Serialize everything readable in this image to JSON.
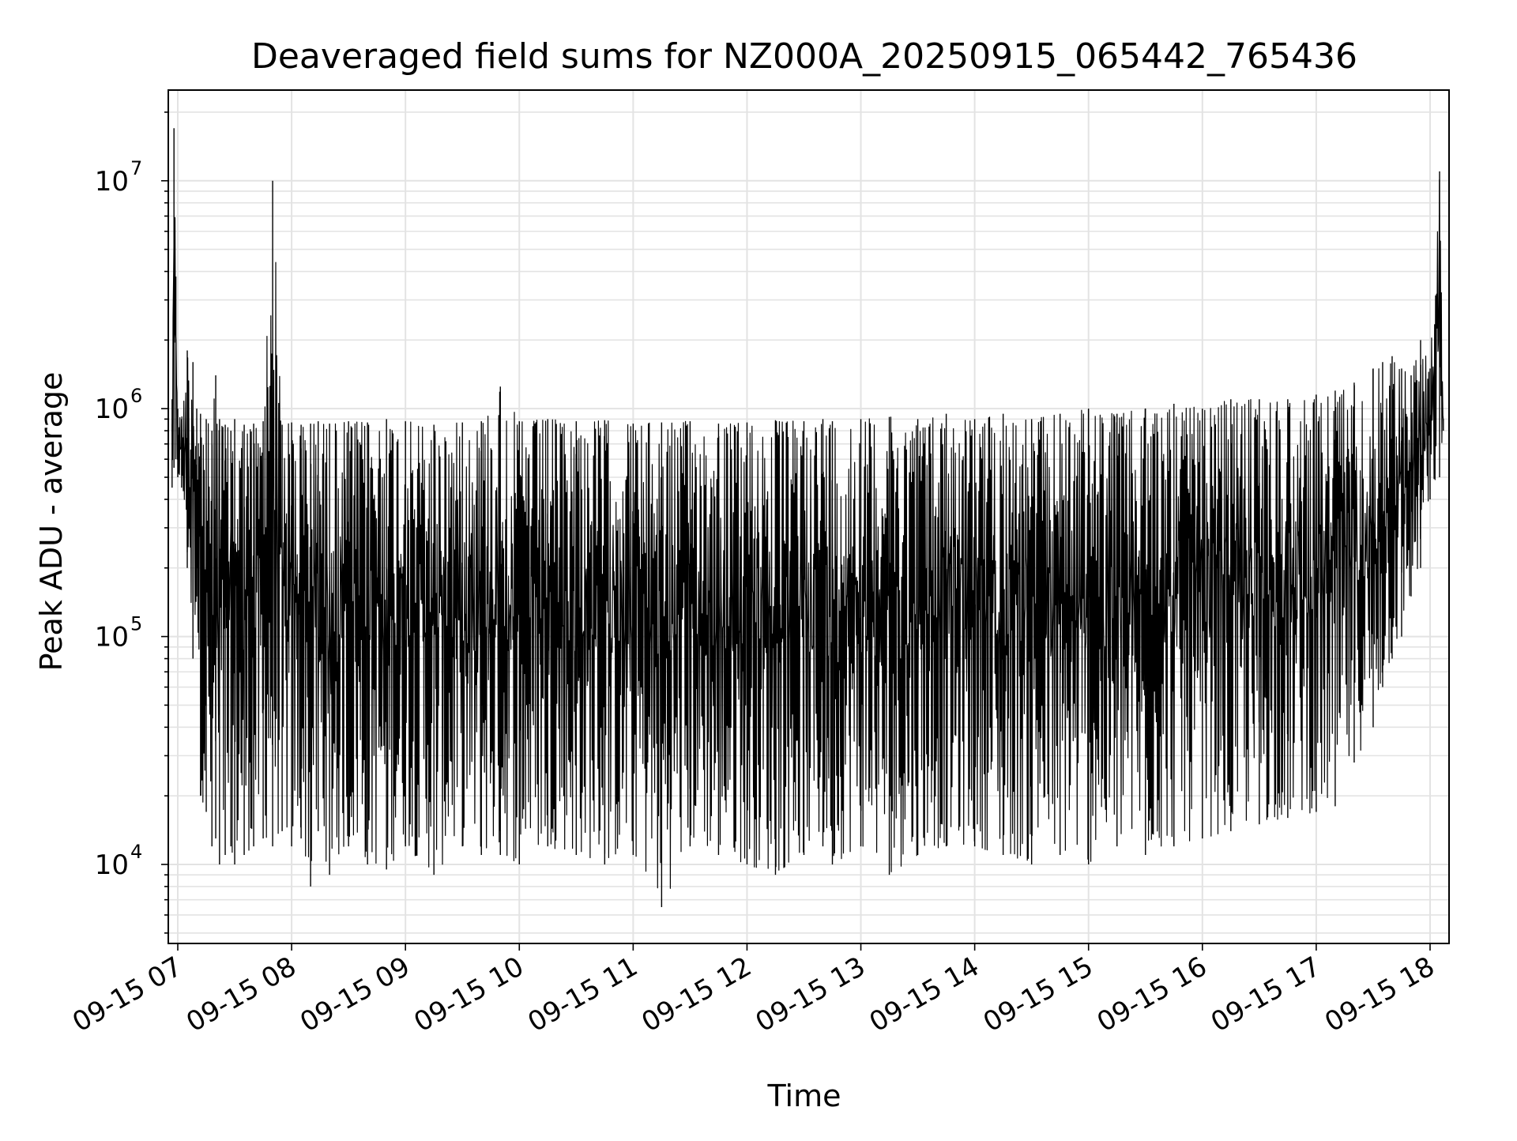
{
  "chart_data": {
    "type": "line",
    "title": "Deaveraged field sums for NZ000A_20250915_065442_765436",
    "xlabel": "Time",
    "ylabel": "Peak ADU - average",
    "yscale": "log",
    "ylim": [
      4500,
      25000000
    ],
    "xlim": [
      "2025-09-15 06:55",
      "2025-09-15 18:10"
    ],
    "grid": true,
    "legend": "none",
    "x_ticks": [
      "09-15 07",
      "09-15 08",
      "09-15 09",
      "09-15 10",
      "09-15 11",
      "09-15 12",
      "09-15 13",
      "09-15 14",
      "09-15 15",
      "09-15 16",
      "09-15 17",
      "09-15 18"
    ],
    "y_ticks": [
      {
        "value": 10000,
        "base": "10",
        "exponent": "4"
      },
      {
        "value": 100000,
        "base": "10",
        "exponent": "5"
      },
      {
        "value": 1000000,
        "base": "10",
        "exponent": "6"
      },
      {
        "value": 10000000,
        "base": "10",
        "exponent": "7"
      }
    ],
    "series": [
      {
        "color": "#000000",
        "x": [
          "2025-09-15 06:57",
          "2025-09-15 06:58",
          "2025-09-15 06:59",
          "2025-09-15 07:00",
          "2025-09-15 07:02",
          "2025-09-15 07:05",
          "2025-09-15 07:08",
          "2025-09-15 07:10",
          "2025-09-15 07:12",
          "2025-09-15 07:15",
          "2025-09-15 07:18",
          "2025-09-15 07:20",
          "2025-09-15 07:22",
          "2025-09-15 07:25",
          "2025-09-15 07:28",
          "2025-09-15 07:30",
          "2025-09-15 07:35",
          "2025-09-15 07:40",
          "2025-09-15 07:45",
          "2025-09-15 07:50",
          "2025-09-15 07:55",
          "2025-09-15 08:00",
          "2025-09-15 08:05",
          "2025-09-15 08:10",
          "2025-09-15 08:14",
          "2025-09-15 08:20",
          "2025-09-15 08:30",
          "2025-09-15 08:40",
          "2025-09-15 08:50",
          "2025-09-15 09:00",
          "2025-09-15 09:15",
          "2025-09-15 09:30",
          "2025-09-15 09:40",
          "2025-09-15 09:50",
          "2025-09-15 10:00",
          "2025-09-15 10:15",
          "2025-09-15 10:30",
          "2025-09-15 10:45",
          "2025-09-15 11:00",
          "2025-09-15 11:15",
          "2025-09-15 11:30",
          "2025-09-15 11:45",
          "2025-09-15 12:00",
          "2025-09-15 12:15",
          "2025-09-15 12:30",
          "2025-09-15 12:40",
          "2025-09-15 12:45",
          "2025-09-15 13:00",
          "2025-09-15 13:15",
          "2025-09-15 13:30",
          "2025-09-15 13:45",
          "2025-09-15 14:00",
          "2025-09-15 14:15",
          "2025-09-15 14:30",
          "2025-09-15 14:45",
          "2025-09-15 15:00",
          "2025-09-15 15:15",
          "2025-09-15 15:30",
          "2025-09-15 15:45",
          "2025-09-15 16:00",
          "2025-09-15 16:15",
          "2025-09-15 16:30",
          "2025-09-15 16:45",
          "2025-09-15 17:00",
          "2025-09-15 17:10",
          "2025-09-15 17:20",
          "2025-09-15 17:30",
          "2025-09-15 17:35",
          "2025-09-15 17:40",
          "2025-09-15 17:45",
          "2025-09-15 17:50",
          "2025-09-15 17:55",
          "2025-09-15 18:00",
          "2025-09-15 18:05",
          "2025-09-15 18:07"
        ],
        "y_high": [
          1100000,
          17000000,
          3800000,
          1000000,
          900000,
          1800000,
          1600000,
          1000000,
          950000,
          900000,
          800000,
          1400000,
          900000,
          850000,
          800000,
          900000,
          850000,
          860000,
          880000,
          10000000,
          850000,
          870000,
          850000,
          860000,
          880000,
          860000,
          880000,
          870000,
          900000,
          880000,
          850000,
          870000,
          880000,
          1250000,
          880000,
          900000,
          880000,
          890000,
          860000,
          870000,
          880000,
          860000,
          870000,
          890000,
          880000,
          900000,
          880000,
          900000,
          920000,
          900000,
          950000,
          900000,
          950000,
          900000,
          950000,
          1000000,
          950000,
          1000000,
          1050000,
          1000000,
          1100000,
          1100000,
          1100000,
          1150000,
          1200000,
          1300000,
          1500000,
          1600000,
          1700000,
          1500000,
          1400000,
          2000000,
          1500000,
          11000000,
          900000
        ],
        "y_low": [
          450000,
          550000,
          600000,
          500000,
          450000,
          200000,
          80000,
          150000,
          20000,
          17000,
          12000,
          13000,
          10000,
          11000,
          12000,
          10000,
          11000,
          12000,
          13000,
          12000,
          14000,
          12000,
          13000,
          8000,
          14000,
          9000,
          12000,
          10000,
          9500,
          12000,
          9000,
          12000,
          11000,
          11000,
          10000,
          12000,
          11000,
          10000,
          11000,
          6500,
          12000,
          11000,
          10000,
          9000,
          11000,
          12000,
          10000,
          12000,
          9000,
          11000,
          12000,
          12000,
          11000,
          10000,
          11000,
          10000,
          12000,
          11000,
          12000,
          13000,
          14000,
          15000,
          16000,
          17000,
          18000,
          28000,
          40000,
          60000,
          80000,
          100000,
          150000,
          200000,
          400000,
          500000,
          800000
        ]
      }
    ]
  }
}
